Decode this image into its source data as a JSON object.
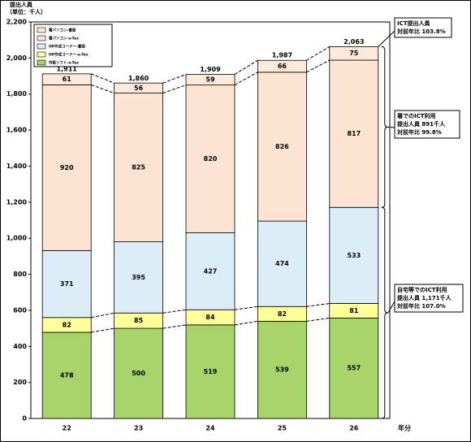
{
  "chart_data": {
    "type": "stacked_bar",
    "y_label_lines": [
      "提出人員",
      "（単位：千人）"
    ],
    "x_label": "年分",
    "categories": [
      "22",
      "23",
      "24",
      "25",
      "26"
    ],
    "series": [
      {
        "name": "市販ソフト-e-Tax",
        "color": "#a6d46a",
        "values": [
          478,
          500,
          519,
          539,
          557
        ]
      },
      {
        "name": "HP作成コーナー-e-Tax",
        "color": "#ffff99",
        "values": [
          82,
          85,
          84,
          82,
          81
        ]
      },
      {
        "name": "HP作成コーナー-書面",
        "color": "#dcedf8",
        "values": [
          371,
          395,
          427,
          474,
          533
        ]
      },
      {
        "name": "署パソコン-e-Tax",
        "color": "#fde4d2",
        "values": [
          920,
          825,
          820,
          826,
          817
        ]
      },
      {
        "name": "署パソコン-書面",
        "color": "#fde9d9",
        "values": [
          61,
          56,
          59,
          66,
          75
        ]
      }
    ],
    "totals": [
      1911,
      1860,
      1909,
      1987,
      2063
    ],
    "totals_labels": [
      "1,911",
      "1,860",
      "1,909",
      "1,987",
      "2,063"
    ],
    "ylim": [
      0,
      2200
    ],
    "yticks": [
      0,
      200,
      400,
      600,
      800,
      {
        "value": 1000,
        "label": "1,000"
      },
      {
        "value": 1200,
        "label": "1,200"
      },
      {
        "value": 1400,
        "label": "1,400"
      },
      {
        "value": 1600,
        "label": "1,600"
      },
      {
        "value": 1800,
        "label": "1,800"
      },
      {
        "value": 2000,
        "label": "2,000"
      },
      {
        "value": 2200,
        "label": "2,200"
      }
    ],
    "annotations": [
      {
        "lines": [
          "ICT提出人員",
          "対前年比 103.8%"
        ]
      },
      {
        "lines": [
          "署でのICT利用",
          "提出人員 891千人",
          "対前年比 99.8%"
        ]
      },
      {
        "lines": [
          "自宅等でのICT利用",
          "提出人員 1,171千人",
          "対前年比 107.0%"
        ]
      }
    ]
  }
}
